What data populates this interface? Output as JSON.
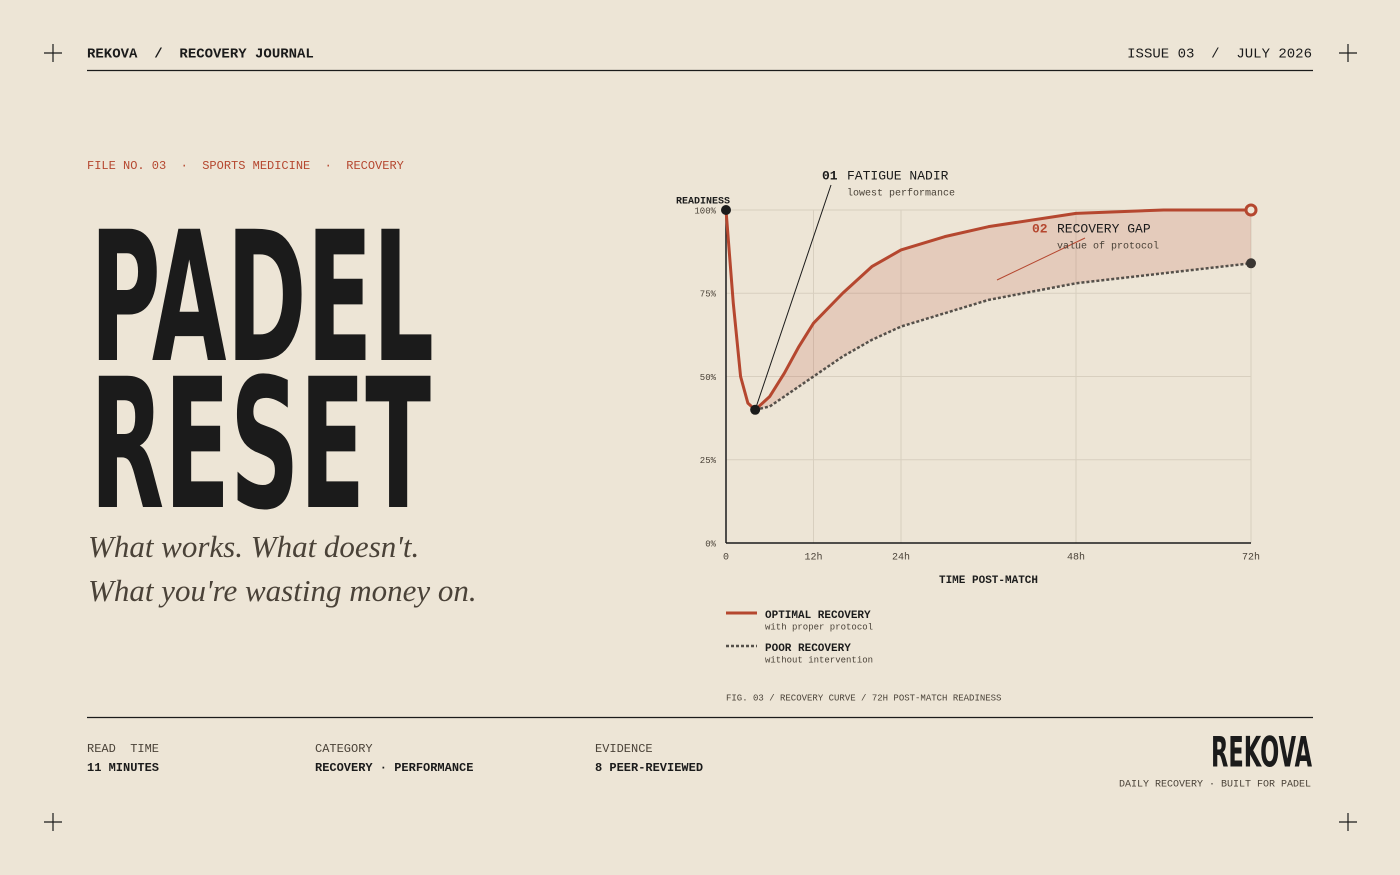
{
  "header": {
    "left": "REKOVA  /  RECOVERY JOURNAL",
    "right": "ISSUE 03  /  JULY 2026"
  },
  "hero": {
    "kicker": "FILE NO. 03  ·  SPORTS MEDICINE  ·  RECOVERY",
    "title": [
      "PADEL",
      "RESET"
    ],
    "subtitle": [
      "What works. What doesn't.",
      "What you're wasting money on."
    ]
  },
  "chart_data": {
    "type": "line",
    "y_label": "READINESS",
    "x_label": "TIME POST-MATCH",
    "x": [
      0,
      1,
      2,
      3,
      4,
      6,
      8,
      10,
      12,
      16,
      20,
      24,
      30,
      36,
      48,
      60,
      72
    ],
    "series": [
      {
        "name": "OPTIMAL RECOVERY",
        "description": "with proper protocol",
        "color": "#b5472f",
        "values": [
          100,
          72,
          50,
          42,
          40,
          44,
          51,
          59,
          66,
          75,
          83,
          88,
          92,
          95,
          99,
          100,
          100
        ]
      },
      {
        "name": "POOR RECOVERY",
        "description": "without intervention",
        "color": "#55504a",
        "values": [
          null,
          null,
          null,
          null,
          40,
          41,
          44,
          47,
          50,
          56,
          61,
          65,
          69,
          73,
          78,
          81,
          84
        ]
      }
    ],
    "xlim": [
      0,
      72
    ],
    "xticks": [
      0,
      {
        "value": 12,
        "label": "12h"
      },
      {
        "value": 24,
        "label": "24h"
      },
      {
        "value": 48,
        "label": "48h"
      },
      {
        "value": 72,
        "label": "72h"
      }
    ],
    "ylim": [
      0,
      100
    ],
    "yticks": [
      {
        "value": 0,
        "label": "0%"
      },
      {
        "value": 25,
        "label": "25%"
      },
      {
        "value": 50,
        "label": "50%"
      },
      {
        "value": 75,
        "label": "75%"
      },
      {
        "value": 100,
        "label": "100%"
      }
    ],
    "grid": true,
    "annotations": [
      {
        "number": "01",
        "title": "FATIGUE NADIR",
        "text": "lowest performance"
      },
      {
        "number": "02",
        "title": "RECOVERY GAP",
        "text": "value of protocol"
      }
    ],
    "caption": "FIG. 03 / RECOVERY CURVE / 72H POST-MATCH READINESS"
  },
  "footer": {
    "meta": [
      {
        "label": "READ  TIME",
        "value": "11 MINUTES"
      },
      {
        "label": "CATEGORY",
        "value": "RECOVERY · PERFORMANCE"
      },
      {
        "label": "EVIDENCE",
        "value": "8 PEER-REVIEWED"
      }
    ],
    "brand": "REKOVA",
    "tagline": "DAILY RECOVERY · BUILT FOR PADEL"
  }
}
